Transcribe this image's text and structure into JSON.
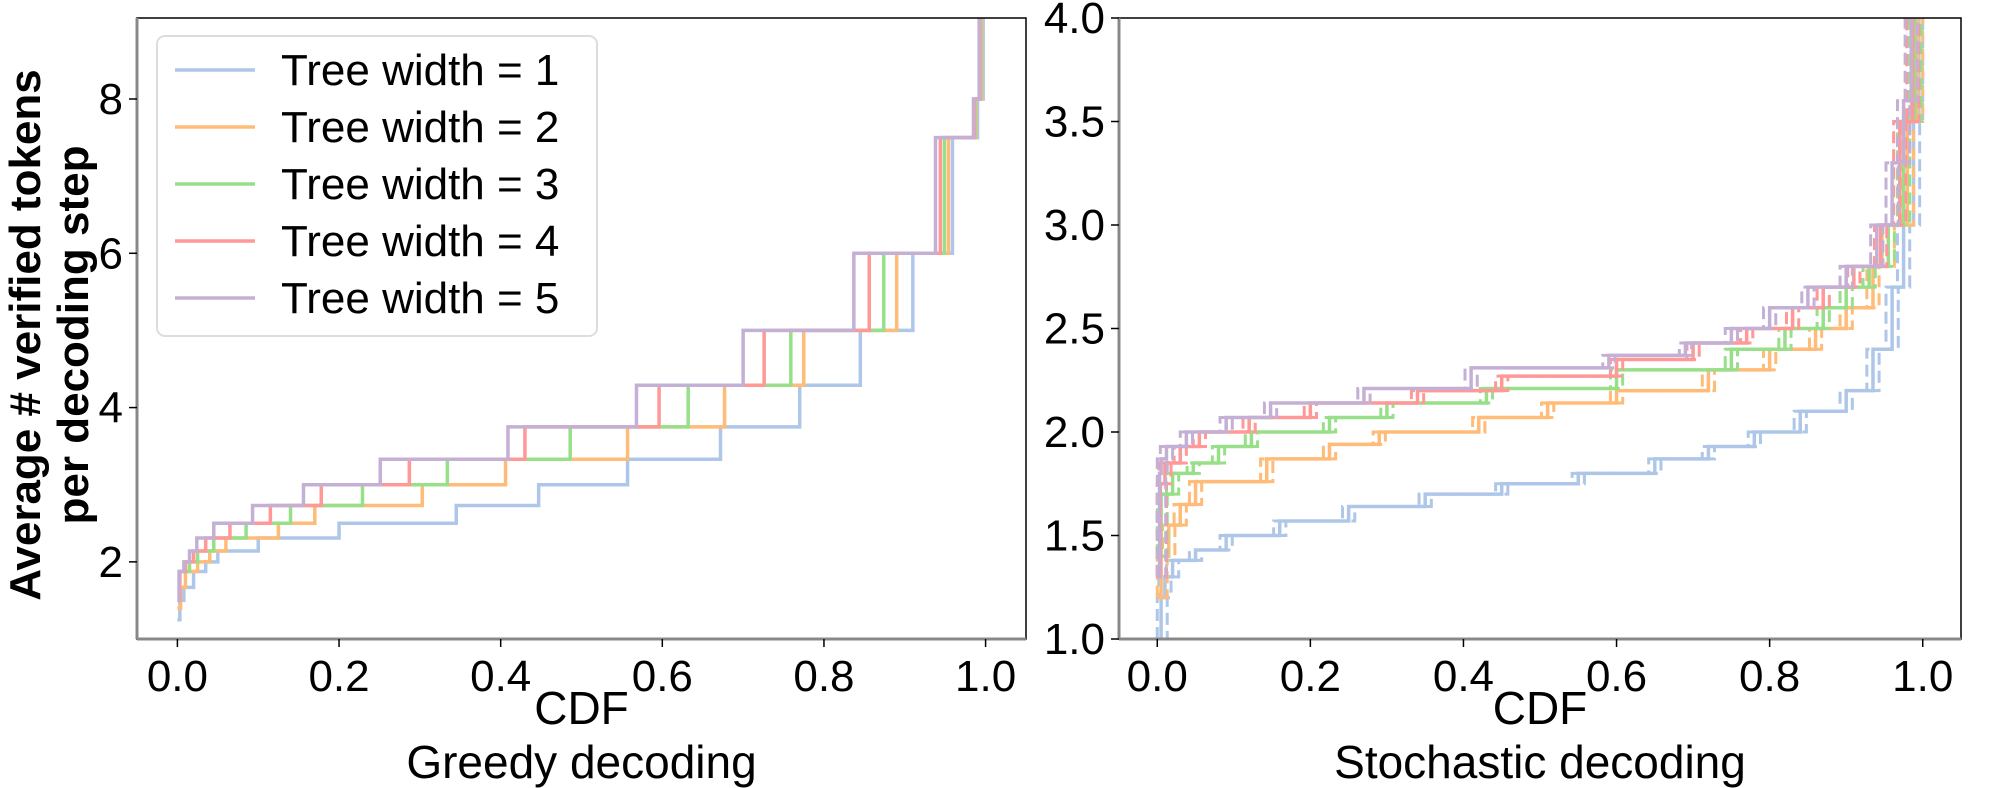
{
  "ylabel_lines": [
    "Average # verified tokens",
    "per decoding step"
  ],
  "legend": {
    "placement": "upper-left of left panel",
    "entries": [
      "Tree width = 1",
      "Tree width = 2",
      "Tree width = 3",
      "Tree width = 4",
      "Tree width = 5"
    ]
  },
  "colors": [
    "#aec7e8",
    "#ffbb78",
    "#98df8a",
    "#ff9896",
    "#c5b0d5"
  ],
  "chart_data": [
    {
      "type": "line",
      "step": true,
      "xlabel": "CDF",
      "subtitle": "Greedy decoding",
      "xlim": [
        -0.05,
        1.05
      ],
      "ylim": [
        1.0,
        9.05
      ],
      "xticks": [
        "0.0",
        "0.2",
        "0.4",
        "0.6",
        "0.8",
        "1.0"
      ],
      "yticks": [
        "2",
        "4",
        "6",
        "8"
      ],
      "grid": false,
      "series": [
        {
          "name": "Tree width = 1",
          "points": [
            [
              0,
              1.25
            ],
            [
              0.003,
              1.5
            ],
            [
              0.008,
              1.67
            ],
            [
              0.02,
              1.875
            ],
            [
              0.035,
              2.0
            ],
            [
              0.05,
              2.14
            ],
            [
              0.1,
              2.31
            ],
            [
              0.2,
              2.5
            ],
            [
              0.345,
              2.73
            ],
            [
              0.447,
              3.0
            ],
            [
              0.557,
              3.33
            ],
            [
              0.672,
              3.75
            ],
            [
              0.77,
              4.29
            ],
            [
              0.845,
              5.0
            ],
            [
              0.91,
              6.0
            ],
            [
              0.959,
              7.5
            ],
            [
              0.99,
              8.0
            ],
            [
              0.997,
              9.1
            ]
          ]
        },
        {
          "name": "Tree width = 2",
          "points": [
            [
              0,
              1.4
            ],
            [
              0.004,
              1.67
            ],
            [
              0.01,
              1.875
            ],
            [
              0.025,
              2.0
            ],
            [
              0.04,
              2.14
            ],
            [
              0.06,
              2.31
            ],
            [
              0.125,
              2.5
            ],
            [
              0.17,
              2.73
            ],
            [
              0.303,
              3.0
            ],
            [
              0.406,
              3.33
            ],
            [
              0.557,
              3.75
            ],
            [
              0.677,
              4.29
            ],
            [
              0.775,
              5.0
            ],
            [
              0.89,
              6.0
            ],
            [
              0.954,
              7.5
            ],
            [
              0.988,
              8.0
            ],
            [
              0.995,
              9.1
            ]
          ]
        },
        {
          "name": "Tree width = 3",
          "points": [
            [
              0,
              1.5
            ],
            [
              0.003,
              1.875
            ],
            [
              0.015,
              2.0
            ],
            [
              0.025,
              2.14
            ],
            [
              0.045,
              2.31
            ],
            [
              0.085,
              2.5
            ],
            [
              0.14,
              2.73
            ],
            [
              0.229,
              3.0
            ],
            [
              0.334,
              3.33
            ],
            [
              0.486,
              3.75
            ],
            [
              0.632,
              4.29
            ],
            [
              0.759,
              5.0
            ],
            [
              0.874,
              6.0
            ],
            [
              0.949,
              7.5
            ],
            [
              0.987,
              8.0
            ],
            [
              0.994,
              9.1
            ]
          ]
        },
        {
          "name": "Tree width = 4",
          "points": [
            [
              0,
              1.5
            ],
            [
              0.003,
              1.875
            ],
            [
              0.01,
              2.0
            ],
            [
              0.02,
              2.14
            ],
            [
              0.035,
              2.31
            ],
            [
              0.065,
              2.5
            ],
            [
              0.115,
              2.73
            ],
            [
              0.178,
              3.0
            ],
            [
              0.287,
              3.33
            ],
            [
              0.43,
              3.75
            ],
            [
              0.596,
              4.29
            ],
            [
              0.726,
              5.0
            ],
            [
              0.856,
              6.0
            ],
            [
              0.944,
              7.5
            ],
            [
              0.986,
              8.0
            ],
            [
              0.993,
              9.1
            ]
          ]
        },
        {
          "name": "Tree width = 5",
          "points": [
            [
              0,
              1.5
            ],
            [
              0.002,
              1.875
            ],
            [
              0.008,
              2.0
            ],
            [
              0.015,
              2.14
            ],
            [
              0.024,
              2.31
            ],
            [
              0.045,
              2.5
            ],
            [
              0.093,
              2.73
            ],
            [
              0.156,
              3.0
            ],
            [
              0.251,
              3.33
            ],
            [
              0.409,
              3.75
            ],
            [
              0.568,
              4.29
            ],
            [
              0.7,
              5.0
            ],
            [
              0.837,
              6.0
            ],
            [
              0.938,
              7.5
            ],
            [
              0.985,
              8.0
            ],
            [
              0.992,
              9.1
            ]
          ]
        }
      ]
    },
    {
      "type": "line",
      "step": true,
      "xlabel": "CDF",
      "subtitle": "Stochastic decoding",
      "xlim": [
        -0.05,
        1.05
      ],
      "ylim": [
        1.0,
        4.0
      ],
      "xticks": [
        "0.0",
        "0.2",
        "0.4",
        "0.6",
        "0.8",
        "1.0"
      ],
      "yticks": [
        "1.0",
        "1.5",
        "2.0",
        "2.5",
        "3.0",
        "3.5",
        "4.0"
      ],
      "grid": false,
      "band_spread_cdf": 0.008,
      "series": [
        {
          "name": "Tree width = 1",
          "points": [
            [
              0,
              1.0
            ],
            [
              0.005,
              1.2
            ],
            [
              0.01,
              1.3
            ],
            [
              0.02,
              1.38
            ],
            [
              0.05,
              1.43
            ],
            [
              0.09,
              1.5
            ],
            [
              0.16,
              1.57
            ],
            [
              0.25,
              1.64
            ],
            [
              0.35,
              1.7
            ],
            [
              0.45,
              1.75
            ],
            [
              0.55,
              1.8
            ],
            [
              0.65,
              1.87
            ],
            [
              0.72,
              1.93
            ],
            [
              0.78,
              2.0
            ],
            [
              0.84,
              2.1
            ],
            [
              0.9,
              2.2
            ],
            [
              0.935,
              2.4
            ],
            [
              0.96,
              2.7
            ],
            [
              0.975,
              3.0
            ],
            [
              0.988,
              3.5
            ],
            [
              0.995,
              4.1
            ]
          ]
        },
        {
          "name": "Tree width = 2",
          "points": [
            [
              0,
              1.2
            ],
            [
              0.005,
              1.4
            ],
            [
              0.015,
              1.55
            ],
            [
              0.03,
              1.65
            ],
            [
              0.05,
              1.76
            ],
            [
              0.143,
              1.87
            ],
            [
              0.225,
              1.94
            ],
            [
              0.29,
              2.0
            ],
            [
              0.42,
              2.07
            ],
            [
              0.51,
              2.14
            ],
            [
              0.6,
              2.2
            ],
            [
              0.72,
              2.3
            ],
            [
              0.8,
              2.4
            ],
            [
              0.86,
              2.5
            ],
            [
              0.9,
              2.6
            ],
            [
              0.935,
              2.8
            ],
            [
              0.955,
              3.0
            ],
            [
              0.98,
              3.5
            ],
            [
              0.993,
              4.1
            ]
          ]
        },
        {
          "name": "Tree width = 3",
          "points": [
            [
              0,
              1.4
            ],
            [
              0.005,
              1.7
            ],
            [
              0.02,
              1.8
            ],
            [
              0.047,
              1.85
            ],
            [
              0.08,
              1.93
            ],
            [
              0.123,
              2.0
            ],
            [
              0.225,
              2.07
            ],
            [
              0.3,
              2.14
            ],
            [
              0.43,
              2.21
            ],
            [
              0.6,
              2.3
            ],
            [
              0.75,
              2.4
            ],
            [
              0.82,
              2.5
            ],
            [
              0.87,
              2.6
            ],
            [
              0.9,
              2.7
            ],
            [
              0.93,
              2.8
            ],
            [
              0.955,
              3.0
            ],
            [
              0.975,
              3.5
            ],
            [
              0.99,
              4.1
            ]
          ]
        },
        {
          "name": "Tree width = 4",
          "points": [
            [
              0,
              1.3
            ],
            [
              0.004,
              1.75
            ],
            [
              0.01,
              1.85
            ],
            [
              0.03,
              1.93
            ],
            [
              0.055,
              2.0
            ],
            [
              0.12,
              2.07
            ],
            [
              0.2,
              2.14
            ],
            [
              0.34,
              2.2
            ],
            [
              0.45,
              2.27
            ],
            [
              0.6,
              2.35
            ],
            [
              0.7,
              2.43
            ],
            [
              0.77,
              2.5
            ],
            [
              0.83,
              2.6
            ],
            [
              0.87,
              2.7
            ],
            [
              0.91,
              2.8
            ],
            [
              0.945,
              3.0
            ],
            [
              0.97,
              3.5
            ],
            [
              0.987,
              4.1
            ]
          ]
        },
        {
          "name": "Tree width = 5",
          "points": [
            [
              0,
              1.3
            ],
            [
              0.003,
              1.8
            ],
            [
              0.005,
              1.87
            ],
            [
              0.012,
              1.93
            ],
            [
              0.038,
              2.0
            ],
            [
              0.09,
              2.07
            ],
            [
              0.148,
              2.14
            ],
            [
              0.27,
              2.21
            ],
            [
              0.41,
              2.31
            ],
            [
              0.59,
              2.37
            ],
            [
              0.69,
              2.43
            ],
            [
              0.75,
              2.5
            ],
            [
              0.8,
              2.6
            ],
            [
              0.85,
              2.7
            ],
            [
              0.9,
              2.8
            ],
            [
              0.94,
              3.0
            ],
            [
              0.96,
              3.3
            ],
            [
              0.975,
              3.6
            ],
            [
              0.985,
              4.1
            ]
          ]
        }
      ]
    }
  ]
}
